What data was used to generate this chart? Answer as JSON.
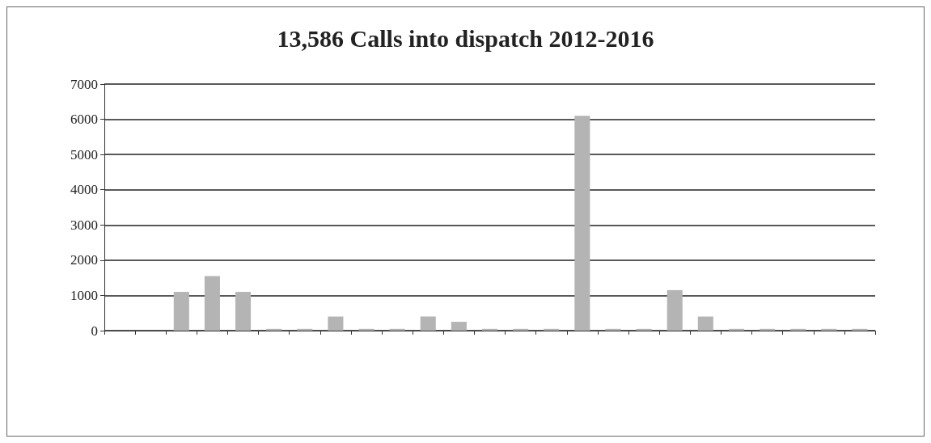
{
  "chart_data": {
    "type": "bar",
    "title": "13,586 Calls into dispatch 2012-2016",
    "categories": [
      null,
      null,
      null,
      null,
      null,
      null,
      null,
      null,
      null,
      null,
      null,
      null,
      null,
      null,
      null,
      null,
      null,
      null,
      null,
      null,
      null,
      null,
      null,
      null,
      null
    ],
    "values": [
      null,
      null,
      1100,
      1550,
      1100,
      50,
      50,
      400,
      50,
      50,
      400,
      250,
      50,
      50,
      50,
      6100,
      50,
      50,
      1150,
      400,
      50,
      50,
      50,
      50,
      50
    ],
    "color": "#b4b4b4",
    "ylim": [
      0,
      7000
    ],
    "yticks": [
      0,
      1000,
      2000,
      3000,
      4000,
      5000,
      6000,
      7000
    ],
    "grid": "y"
  }
}
